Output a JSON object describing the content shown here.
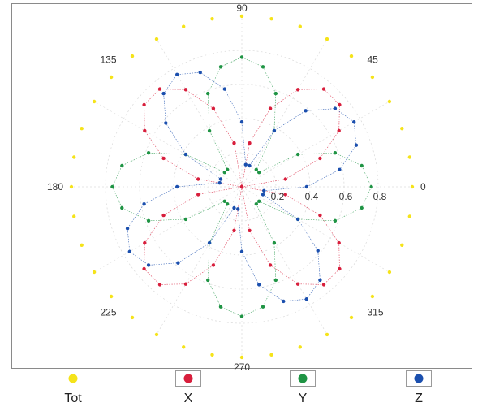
{
  "chart_data": {
    "type": "polar-scatter",
    "title": "",
    "angle_labels": [
      "0",
      "45",
      "90",
      "135",
      "180",
      "225",
      "270",
      "315"
    ],
    "angle_values_deg": [
      0,
      45,
      90,
      135,
      180,
      225,
      270,
      315
    ],
    "radial_ticks": [
      0.2,
      0.4,
      0.6,
      0.8
    ],
    "radial_tick_labels": [
      "0.2",
      "0.4",
      "0.6",
      "0.8"
    ],
    "rlim": [
      0,
      1
    ],
    "angle_step_deg": 10,
    "grid": true,
    "legend_position": "bottom",
    "series": [
      {
        "name": "Tot",
        "color": "#f5e31a",
        "shape": "circle",
        "radius": 1.0
      },
      {
        "name": "X",
        "color": "#d81e3c",
        "shape": "sin2theta",
        "lobes": [
          45,
          135,
          225,
          315
        ],
        "amplitude": 0.76
      },
      {
        "name": "Y",
        "color": "#1f9444",
        "shape": "cos2theta",
        "lobes": [
          0,
          90,
          180,
          270
        ],
        "amplitude": 0.76
      },
      {
        "name": "Z",
        "color": "#1b4fae",
        "shape": "sin2theta-rotated",
        "lobes": [
          30,
          120,
          210,
          300
        ],
        "amplitude": 0.76
      }
    ]
  },
  "legend": [
    {
      "label": "Tot",
      "color": "#f5e31a",
      "framed": false
    },
    {
      "label": "X",
      "color": "#d81e3c",
      "framed": true
    },
    {
      "label": "Y",
      "color": "#1f9444",
      "framed": true
    },
    {
      "label": "Z",
      "color": "#1b4fae",
      "framed": true
    }
  ]
}
